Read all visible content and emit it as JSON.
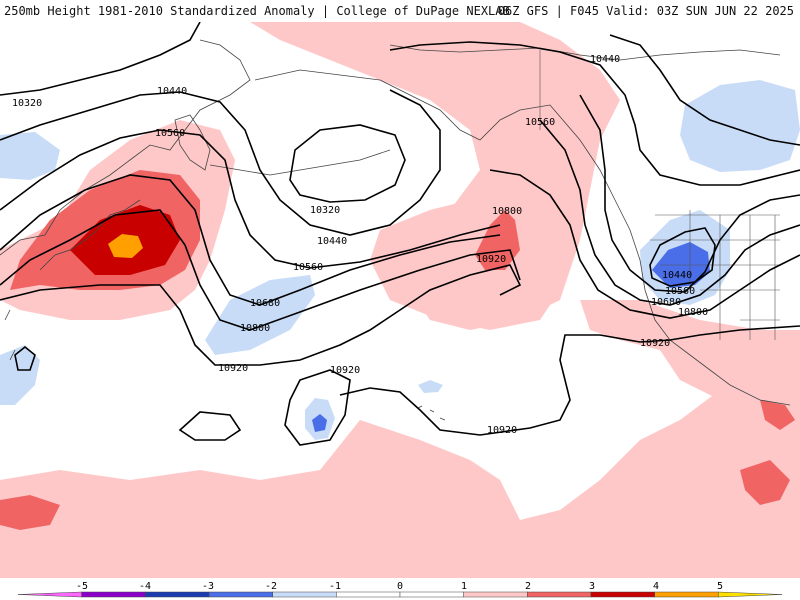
{
  "header": {
    "left_title": "250mb Height 1981-2010 Standardized Anomaly | College of DuPage NEXLAB",
    "right_title": "06Z GFS | F045 Valid: 03Z SUN JUN 22 2025"
  },
  "contours": [
    {
      "label": "10320"
    },
    {
      "label": "10440"
    },
    {
      "label": "10560"
    },
    {
      "label": "10320"
    },
    {
      "label": "10440"
    },
    {
      "label": "10560"
    },
    {
      "label": "10680"
    },
    {
      "label": "10800"
    },
    {
      "label": "10920"
    },
    {
      "label": "10920"
    },
    {
      "label": "10800"
    },
    {
      "label": "10440"
    },
    {
      "label": "10560"
    },
    {
      "label": "10440"
    },
    {
      "label": "10560"
    },
    {
      "label": "10680"
    },
    {
      "label": "10800"
    },
    {
      "label": "10920"
    },
    {
      "label": "10920"
    },
    {
      "label": "10920"
    }
  ],
  "colorbar": {
    "ticks": [
      "-5",
      "-4",
      "-3",
      "-2",
      "-1",
      "0",
      "1",
      "2",
      "3",
      "4",
      "5"
    ],
    "colors": {
      "neg5": "#ff66ff",
      "neg4": "#8a00c8",
      "neg3": "#1a3cb0",
      "neg2": "#4a6ee8",
      "neg1": "#c8dcf8",
      "zero": "#ffffff",
      "pos1": "#ffc8c8",
      "pos2": "#f06464",
      "pos3": "#c80000",
      "pos4": "#ffa000",
      "pos5": "#ffe000"
    }
  }
}
